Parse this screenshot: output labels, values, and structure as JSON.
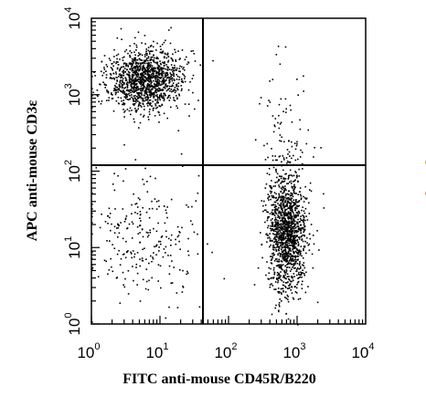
{
  "chart_data": {
    "type": "scatter",
    "scale": "log10",
    "xlabel": "FITC anti-mouse CD45R/B220",
    "ylabel": "APC anti-mouse CD3ε",
    "xlim": [
      1,
      10000
    ],
    "ylim": [
      1,
      10000
    ],
    "x_ticks": [
      {
        "base": "10",
        "exp": "0"
      },
      {
        "base": "10",
        "exp": "1"
      },
      {
        "base": "10",
        "exp": "2"
      },
      {
        "base": "10",
        "exp": "3"
      },
      {
        "base": "10",
        "exp": "4"
      }
    ],
    "y_ticks": [
      {
        "base": "10",
        "exp": "0"
      },
      {
        "base": "10",
        "exp": "1"
      },
      {
        "base": "10",
        "exp": "2"
      },
      {
        "base": "10",
        "exp": "3"
      },
      {
        "base": "10",
        "exp": "4"
      }
    ],
    "quadrant_gates": {
      "x": 40,
      "y": 130
    },
    "populations": [
      {
        "label": "",
        "center": [
          6,
          1600
        ],
        "approx_events": 1300
      },
      {
        "label": "",
        "center": [
          700,
          16
        ],
        "approx_events": 1400
      },
      {
        "label": "",
        "center": [
          6,
          14
        ],
        "approx_events": 260
      },
      {
        "label": "",
        "center": [
          600,
          300
        ],
        "approx_events": 70
      }
    ],
    "grid": false,
    "legend": "none"
  }
}
